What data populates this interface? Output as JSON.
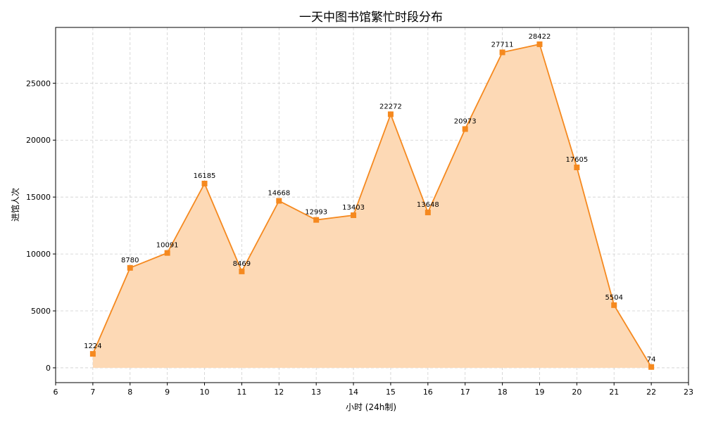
{
  "colors": {
    "line": "#f5891f",
    "marker": "#f5891f",
    "fill": "#fdd9b5",
    "grid": "#cfcfcf"
  },
  "chart_data": {
    "type": "area",
    "title": "一天中图书馆繁忙时段分布",
    "xlabel": "小时 (24h制)",
    "ylabel": "进馆人次",
    "x": [
      7,
      8,
      9,
      10,
      11,
      12,
      13,
      14,
      15,
      16,
      17,
      18,
      19,
      20,
      21,
      22
    ],
    "series": [
      {
        "values": [
          1224,
          8780,
          10091,
          16185,
          8469,
          14668,
          12993,
          13403,
          22272,
          13648,
          20973,
          27711,
          28422,
          17605,
          5504,
          74
        ],
        "marker": "square",
        "data_labels": true
      }
    ],
    "xlim": [
      6,
      23
    ],
    "ylim": [
      -1300,
      29900
    ],
    "xticks": [
      6,
      7,
      8,
      9,
      10,
      11,
      12,
      13,
      14,
      15,
      16,
      17,
      18,
      19,
      20,
      21,
      22,
      23
    ],
    "yticks": [
      0,
      5000,
      10000,
      15000,
      20000,
      25000
    ],
    "grid": true,
    "legend": "none"
  }
}
